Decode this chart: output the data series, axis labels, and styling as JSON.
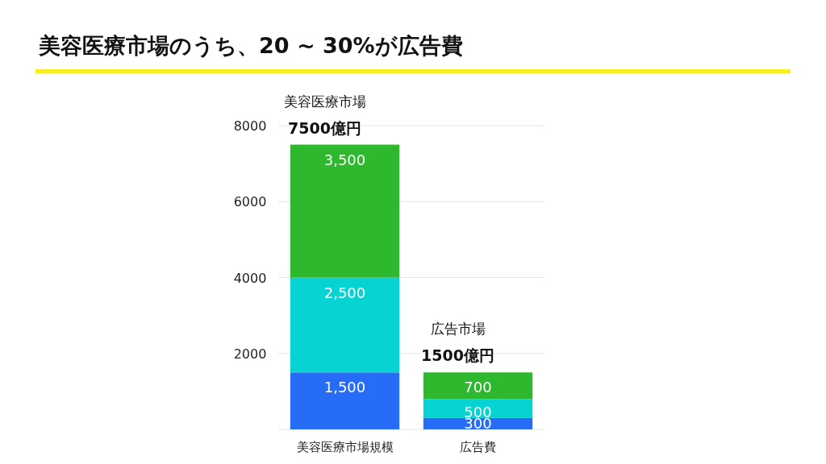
{
  "chart_data": {
    "type": "bar",
    "title": "美容医療市場のうち、20 ~ 30%が広告費",
    "categories": [
      "美容医療市場規模",
      "広告費"
    ],
    "stacked": true,
    "series": [
      {
        "color": "#266cf6",
        "values": [
          1500,
          300
        ],
        "value_labels": [
          "1,500",
          "300"
        ]
      },
      {
        "color": "#08d3d3",
        "values": [
          2500,
          500
        ],
        "value_labels": [
          "2,500",
          "500"
        ]
      },
      {
        "color": "#2db82d",
        "values": [
          3500,
          700
        ],
        "value_labels": [
          "3,500",
          "700"
        ]
      }
    ],
    "ylim": [
      0,
      8000
    ],
    "yticks": [
      2000,
      4000,
      6000,
      8000
    ],
    "grid": "y",
    "annotations": [
      {
        "text": "美容医療市場",
        "x": "美容医療市場規模",
        "y": 7500
      },
      {
        "text": "7500億円",
        "x": "美容医療市場規模",
        "y": 7500
      },
      {
        "text": "広告市場",
        "x": "広告費",
        "y": 1500
      },
      {
        "text": "1500億円",
        "x": "広告費",
        "y": 1500
      }
    ]
  }
}
